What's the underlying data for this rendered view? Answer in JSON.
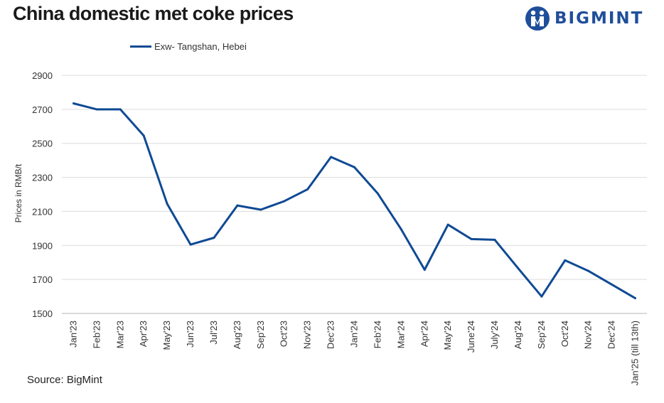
{
  "title": "China domestic met coke prices",
  "brand": {
    "name": "BIGMINT",
    "color": "#1f4e9a"
  },
  "source": "Source: BigMint",
  "chart_data": {
    "type": "line",
    "title": "China domestic met coke prices",
    "ylabel": "Prices in RMB/t",
    "xlabel": "",
    "ylim": [
      1500,
      2900
    ],
    "yticks": [
      1500,
      1700,
      1900,
      2100,
      2300,
      2500,
      2700,
      2900
    ],
    "grid": true,
    "legend_position": "top",
    "categories": [
      "Jan'23",
      "Feb'23",
      "Mar'23",
      "Apr'23",
      "May'23",
      "Jun'23",
      "Jul'23",
      "Aug'23",
      "Sep'23",
      "Oct'23",
      "Nov'23",
      "Dec'23",
      "Jan'24",
      "Feb'24",
      "Mar'24",
      "Apr'24",
      "May'24",
      "June'24",
      "July'24",
      "Aug'24",
      "Sep'24",
      "Oct'24",
      "Nov'24",
      "Dec'24",
      "Jan'25 (till 13th)"
    ],
    "series": [
      {
        "name": "Exw- Tangshan, Hebei",
        "color": "#0f4a94",
        "values": [
          2735,
          2700,
          2700,
          2545,
          2145,
          1905,
          1945,
          2135,
          2110,
          2160,
          2230,
          2420,
          2360,
          2205,
          1995,
          1757,
          2022,
          1937,
          1933,
          1765,
          1600,
          1812,
          1750,
          1670,
          1590
        ]
      }
    ]
  }
}
